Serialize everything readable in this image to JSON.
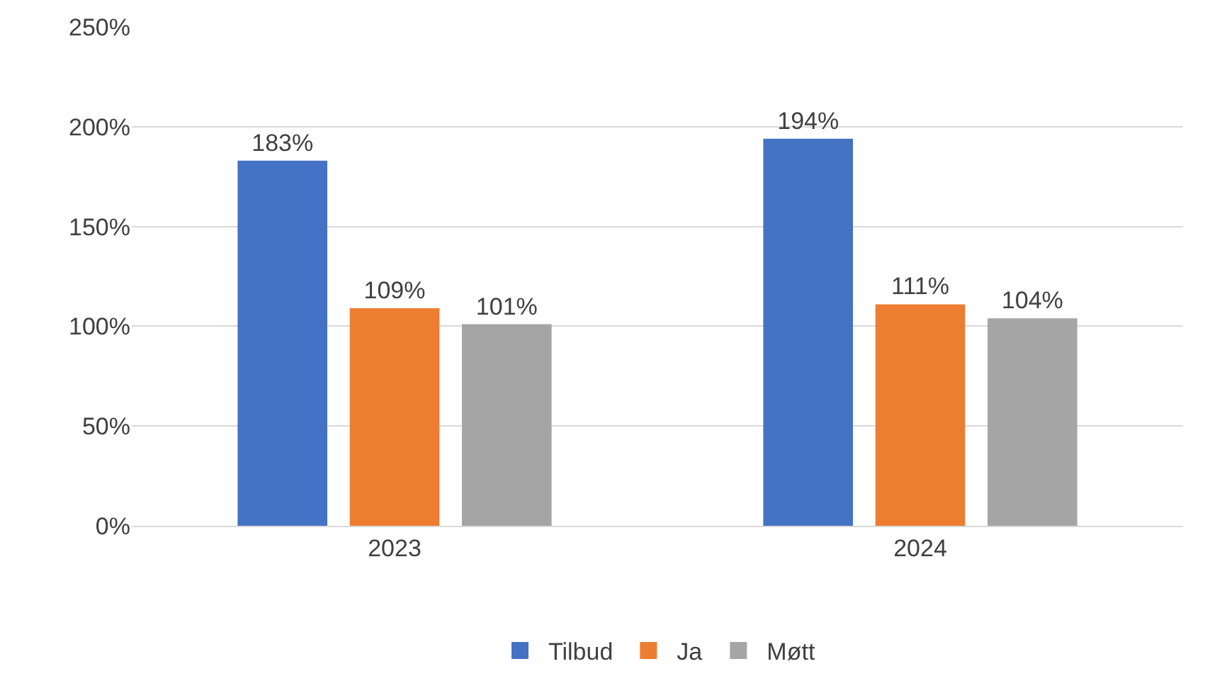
{
  "chart_data": {
    "type": "bar",
    "categories": [
      "2023",
      "2024"
    ],
    "series": [
      {
        "name": "Tilbud",
        "color": "#4472c4",
        "values": [
          183,
          194
        ],
        "value_labels": [
          "183%",
          "194%"
        ]
      },
      {
        "name": "Ja",
        "color": "#ed7d31",
        "values": [
          109,
          111
        ],
        "value_labels": [
          "109%",
          "111%"
        ]
      },
      {
        "name": "Møtt",
        "color": "#a5a5a5",
        "values": [
          101,
          104
        ],
        "value_labels": [
          "101%",
          "104%"
        ]
      }
    ],
    "ylim": [
      0,
      250
    ],
    "yticks": [
      {
        "value": 0,
        "label": "0%"
      },
      {
        "value": 50,
        "label": "50%"
      },
      {
        "value": 100,
        "label": "100%"
      },
      {
        "value": 150,
        "label": "150%"
      },
      {
        "value": 200,
        "label": "200%"
      },
      {
        "value": 250,
        "label": "250%"
      }
    ],
    "grid": "y",
    "legend": "bottom"
  }
}
